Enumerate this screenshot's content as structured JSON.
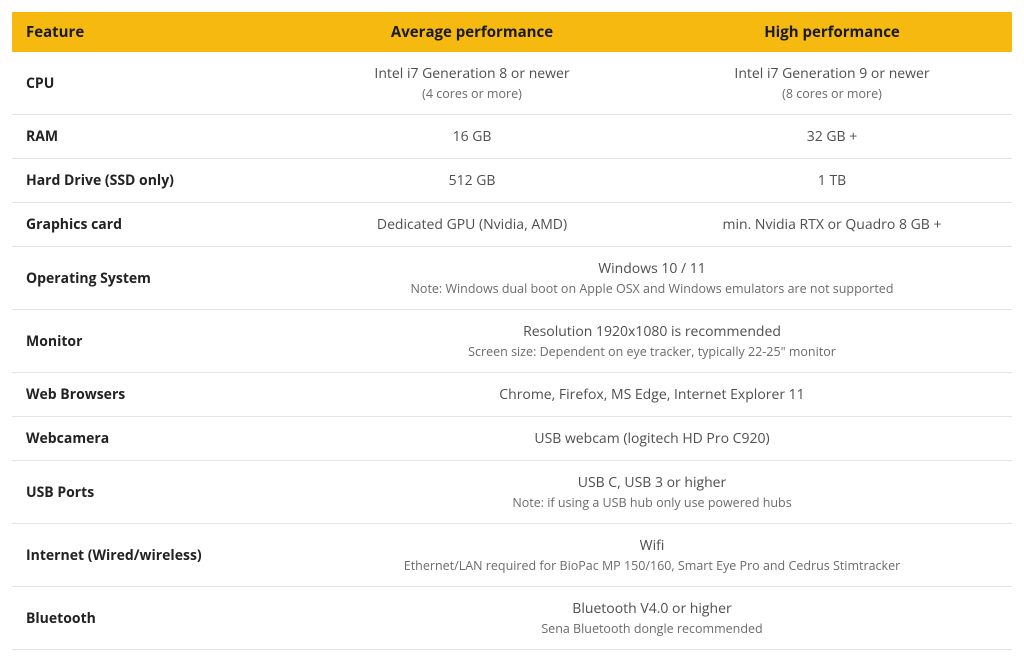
{
  "table": {
    "header_bg": "#f5b90f",
    "header_text_color": "#1a1a1a",
    "border_color": "#e4e4e4",
    "columns": [
      "Feature",
      "Average performance",
      "High performance"
    ],
    "col_widths_pct": [
      28,
      36,
      36
    ],
    "rows": [
      {
        "feature": "CPU",
        "avg": "Intel i7 Generation 8 or newer",
        "avg_sub": "(4 cores or more)",
        "high": "Intel i7 Generation 9 or newer",
        "high_sub": "(8 cores or more)"
      },
      {
        "feature": "RAM",
        "avg": "16 GB",
        "high": "32 GB +"
      },
      {
        "feature": "Hard Drive (SSD only)",
        "avg": "512 GB",
        "high": "1 TB"
      },
      {
        "feature": "Graphics card",
        "avg": "Dedicated GPU (Nvidia, AMD)",
        "high": "min. Nvidia RTX or Quadro 8 GB +"
      },
      {
        "feature": "Operating System",
        "merged": "Windows 10 / 11",
        "merged_sub": "Note: Windows dual boot on Apple OSX and Windows emulators are not supported"
      },
      {
        "feature": "Monitor",
        "merged": "Resolution 1920x1080 is recommended",
        "merged_sub": "Screen size: Dependent on eye tracker, typically 22-25\" monitor"
      },
      {
        "feature": "Web Browsers",
        "merged": "Chrome, Firefox, MS Edge, Internet Explorer 11"
      },
      {
        "feature": "Webcamera",
        "merged": "USB webcam (logitech HD Pro C920)"
      },
      {
        "feature": "USB Ports",
        "merged": "USB C, USB 3 or higher",
        "merged_sub": "Note: if using a USB hub only use powered hubs"
      },
      {
        "feature": "Internet (Wired/wireless)",
        "merged": "Wifi",
        "merged_sub": "Ethernet/LAN required for BioPac MP 150/160, Smart Eye Pro and Cedrus Stimtracker"
      },
      {
        "feature": "Bluetooth",
        "merged": "Bluetooth V4.0 or higher",
        "merged_sub": "Sena Bluetooth dongle recommended"
      }
    ]
  }
}
